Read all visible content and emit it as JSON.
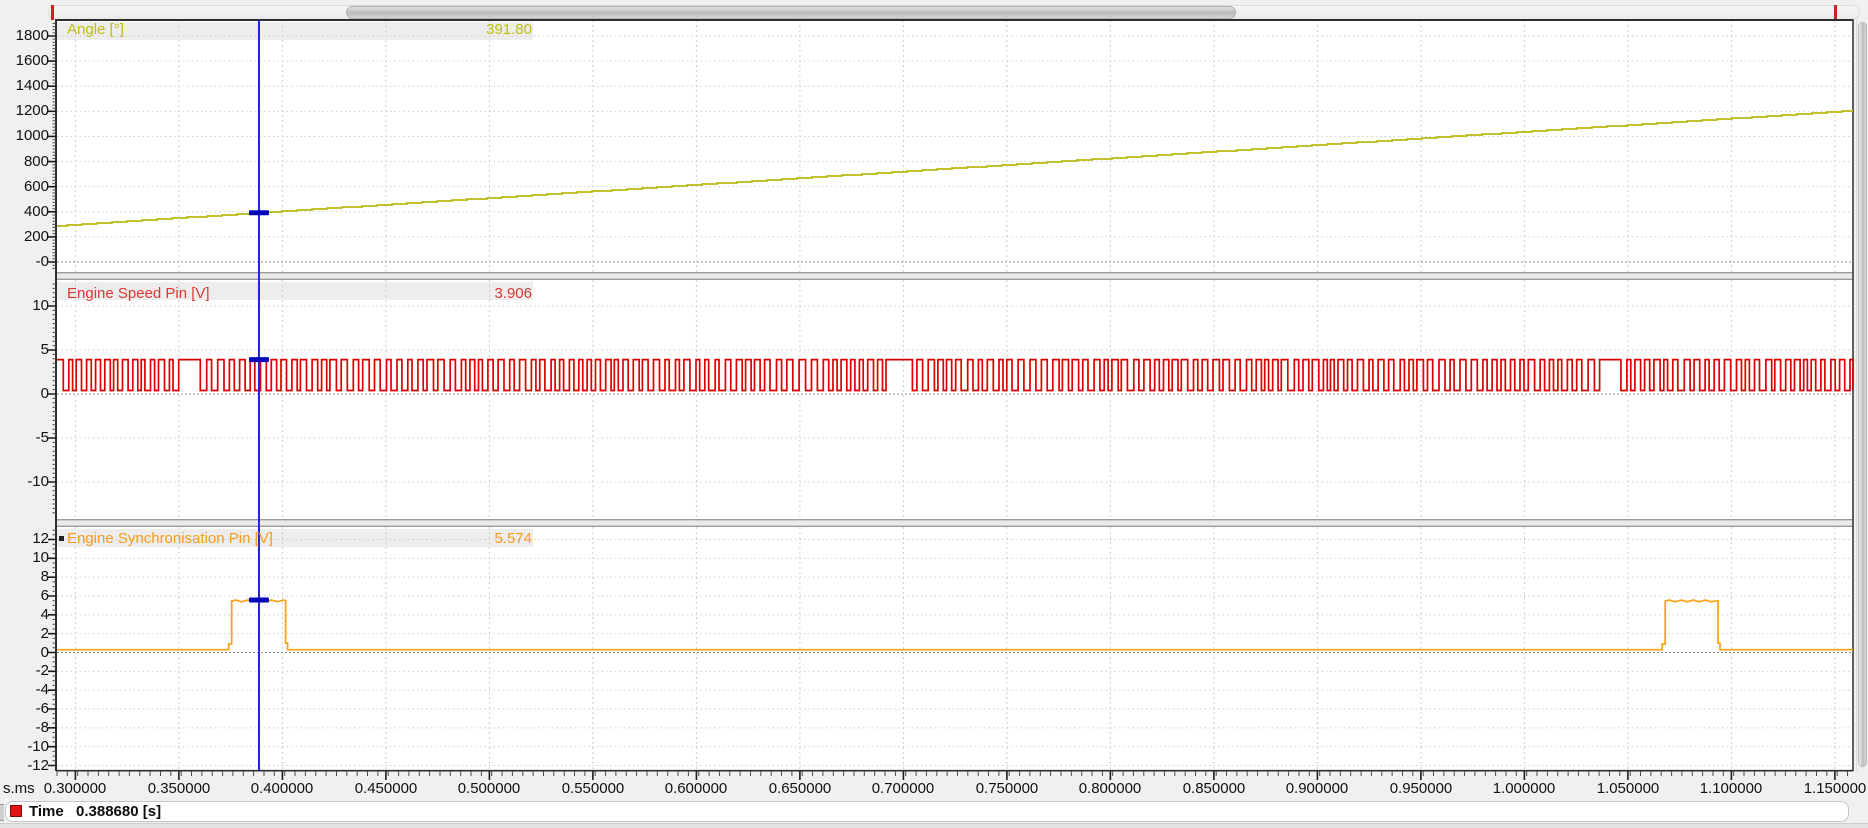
{
  "plots": [
    {
      "label": "Angle [°]",
      "cursor_value": "391.80",
      "label_color": "#bdbd12",
      "y_tick_labels": [
        "1800",
        "1600",
        "1400",
        "1200",
        "1000",
        "800",
        "600",
        "400",
        "200",
        "-0"
      ]
    },
    {
      "label": "Engine Speed Pin [V]",
      "cursor_value": "3.906",
      "label_color": "#e23535",
      "y_tick_labels": [
        "10",
        "5",
        "0",
        "-5",
        "-10"
      ]
    },
    {
      "label": "Engine Synchronisation Pin [V]",
      "cursor_value": "5.574",
      "label_color": "#f79b1e",
      "y_tick_labels": [
        "12",
        "10",
        "8",
        "6",
        "4",
        "2",
        "0",
        "-2",
        "-4",
        "-6",
        "-8",
        "-10",
        "-12"
      ]
    }
  ],
  "x_axis": {
    "unit_label": "s.ms",
    "tick_labels": [
      "0.300000",
      "0.350000",
      "0.400000",
      "0.450000",
      "0.500000",
      "0.550000",
      "0.600000",
      "0.650000",
      "0.700000",
      "0.750000",
      "0.800000",
      "0.850000",
      "0.900000",
      "0.950000",
      "1.000000",
      "1.050000",
      "1.100000",
      "1.150000"
    ]
  },
  "cursor": {
    "time_s": 0.38868,
    "color": "#2424cf",
    "marker_color": "#0008b8"
  },
  "status_bar": {
    "label": "Time",
    "value": "0.388680 [s]",
    "marker_color": "#e11414"
  },
  "chart_data": [
    {
      "type": "line",
      "name": "Angle [°]",
      "unit": "deg",
      "color": "#b9b911",
      "ylim": [
        0,
        1800
      ],
      "xlim_s": [
        0.291,
        1.159
      ],
      "x": [
        0.291,
        0.38868,
        1.159
      ],
      "y": [
        287,
        391.8,
        1205
      ],
      "cursor": {
        "x": 0.38868,
        "y": 391.8
      },
      "note": "near-linear crank angle ramp, ~1060 deg/s"
    },
    {
      "type": "line",
      "name": "Engine Speed Pin [V]",
      "unit": "V",
      "color": "#dd0000",
      "ylim": [
        -10,
        10
      ],
      "waveform": "square",
      "low": 0.4,
      "high": 3.906,
      "tooth_period_s": 0.00464,
      "missing_tooth_gap_starts_s": [
        0.3495,
        0.6925,
        1.036
      ],
      "cursor": {
        "x": 0.38868,
        "y": 3.906
      }
    },
    {
      "type": "line",
      "name": "Engine Synchronisation Pin [V]",
      "unit": "V",
      "color": "#ffa013",
      "ylim": [
        -12,
        12
      ],
      "waveform": "pulse",
      "baseline": 0.3,
      "pulse_level": 5.574,
      "pulses_s": [
        [
          0.3755,
          0.4025
        ],
        [
          1.068,
          1.0945
        ]
      ],
      "cursor": {
        "x": 0.38868,
        "y": 5.574
      }
    }
  ]
}
